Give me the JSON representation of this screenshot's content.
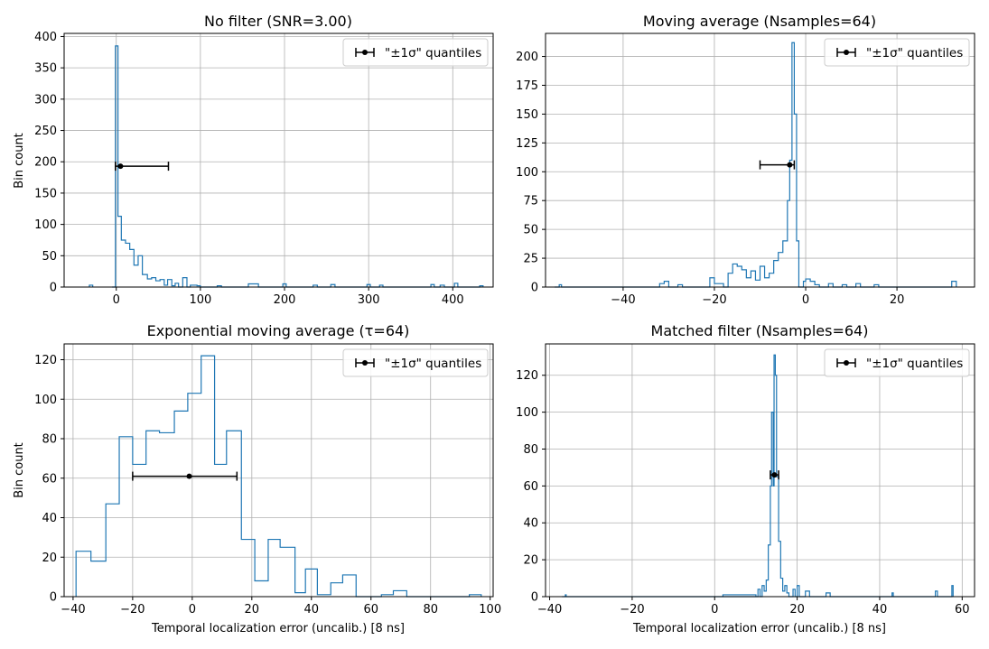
{
  "figure": {
    "ylabel": "Bin count",
    "xlabel": "Temporal localization error (uncalib.) [8 ns]"
  },
  "chart_data": [
    {
      "type": "histogram",
      "title": "No filter (SNR=3.00)",
      "legend": {
        "label": "\"±1σ\" quantiles",
        "placement": "top-right"
      },
      "grid": true,
      "xlim": [
        -62,
        448
      ],
      "ylim": [
        0,
        405
      ],
      "xticks": [
        0,
        100,
        200,
        300,
        400
      ],
      "yticks": [
        0,
        50,
        100,
        150,
        200,
        250,
        300,
        350,
        400
      ],
      "steps": [
        [
          -5,
          0
        ],
        [
          -1,
          385
        ],
        [
          2,
          113
        ],
        [
          6,
          75
        ],
        [
          11,
          70
        ],
        [
          16,
          60
        ],
        [
          21,
          35
        ],
        [
          26,
          50
        ],
        [
          31,
          20
        ],
        [
          37,
          13
        ],
        [
          42,
          15
        ],
        [
          47,
          10
        ],
        [
          52,
          12
        ],
        [
          57,
          3
        ],
        [
          61,
          12
        ],
        [
          66,
          2
        ],
        [
          70,
          6
        ],
        [
          74,
          0
        ],
        [
          79,
          15
        ],
        [
          84,
          0
        ],
        [
          88,
          3
        ],
        [
          96,
          2
        ],
        [
          100,
          0
        ],
        [
          120,
          2
        ],
        [
          125,
          0
        ],
        [
          157,
          5
        ],
        [
          169,
          0
        ],
        [
          198,
          5
        ],
        [
          202,
          0
        ],
        [
          234,
          3
        ],
        [
          239,
          0
        ],
        [
          255,
          4
        ],
        [
          260,
          0
        ],
        [
          298,
          4
        ],
        [
          302,
          0
        ],
        [
          313,
          3
        ],
        [
          317,
          0
        ],
        [
          374,
          4
        ],
        [
          378,
          0
        ],
        [
          385,
          3
        ],
        [
          390,
          0
        ],
        [
          402,
          6
        ],
        [
          406,
          0
        ],
        [
          432,
          2
        ],
        [
          436,
          0
        ]
      ],
      "steps_end": 436,
      "bars_extra": [
        [
          -32,
          -28,
          3
        ]
      ],
      "errorbar": {
        "x": 5,
        "xmin": -1,
        "xmax": 62,
        "y": 193
      }
    },
    {
      "type": "histogram",
      "title": "Moving average (Nsamples=64)",
      "legend": {
        "label": "\"±1σ\" quantiles",
        "placement": "top-right"
      },
      "grid": true,
      "xlim": [
        -57,
        37
      ],
      "ylim": [
        0,
        220
      ],
      "xticks": [
        -40,
        -20,
        0,
        20
      ],
      "yticks": [
        0,
        25,
        50,
        75,
        100,
        125,
        150,
        175,
        200
      ],
      "steps": [
        [
          -55,
          0
        ],
        [
          -54,
          2
        ],
        [
          -53.5,
          0
        ],
        [
          -32,
          3
        ],
        [
          -31,
          5
        ],
        [
          -30,
          0
        ],
        [
          -28,
          2
        ],
        [
          -27,
          0
        ],
        [
          -21,
          8
        ],
        [
          -20,
          3
        ],
        [
          -18,
          0
        ],
        [
          -17,
          12
        ],
        [
          -16,
          20
        ],
        [
          -15,
          18
        ],
        [
          -14,
          15
        ],
        [
          -13,
          8
        ],
        [
          -12,
          14
        ],
        [
          -11,
          6
        ],
        [
          -10,
          18
        ],
        [
          -9,
          8
        ],
        [
          -8,
          12
        ],
        [
          -7,
          23
        ],
        [
          -6,
          30
        ],
        [
          -5,
          40
        ],
        [
          -4,
          75
        ],
        [
          -3.5,
          110
        ],
        [
          -3,
          212
        ],
        [
          -2.5,
          150
        ],
        [
          -2,
          40
        ],
        [
          -1.5,
          0
        ],
        [
          -0.5,
          5
        ],
        [
          0,
          7
        ],
        [
          1,
          5
        ],
        [
          2,
          2
        ],
        [
          3,
          0
        ],
        [
          5,
          3
        ],
        [
          6,
          0
        ],
        [
          8,
          2
        ],
        [
          9,
          0
        ],
        [
          11,
          3
        ],
        [
          12,
          0
        ],
        [
          15,
          2
        ],
        [
          16,
          0
        ],
        [
          32,
          5
        ],
        [
          33,
          0
        ]
      ],
      "steps_end": 33,
      "bars_extra": [],
      "errorbar": {
        "x": -3.5,
        "xmin": -10,
        "xmax": -2.5,
        "y": 106
      }
    },
    {
      "type": "histogram",
      "title": "Exponential moving average (τ=64)",
      "legend": {
        "label": "\"±1σ\" quantiles",
        "placement": "top-right"
      },
      "grid": true,
      "xlim": [
        -43,
        101
      ],
      "ylim": [
        0,
        128
      ],
      "xticks": [
        -40,
        -20,
        0,
        20,
        40,
        60,
        80,
        100
      ],
      "yticks": [
        0,
        20,
        40,
        60,
        80,
        100,
        120
      ],
      "steps": [
        [
          -39,
          23
        ],
        [
          -34,
          18
        ],
        [
          -29,
          47
        ],
        [
          -24.5,
          81
        ],
        [
          -20,
          67
        ],
        [
          -15.5,
          84
        ],
        [
          -11,
          83
        ],
        [
          -6,
          94
        ],
        [
          -1.5,
          103
        ],
        [
          3,
          122
        ],
        [
          7.5,
          67
        ],
        [
          11.5,
          84
        ],
        [
          16.5,
          29
        ],
        [
          21,
          8
        ],
        [
          25.5,
          29
        ],
        [
          29.5,
          25
        ],
        [
          34.5,
          2
        ],
        [
          38,
          14
        ],
        [
          42,
          1
        ],
        [
          46.5,
          7
        ],
        [
          50.5,
          11
        ],
        [
          55,
          0
        ],
        [
          63.5,
          1
        ],
        [
          67.5,
          3
        ],
        [
          72,
          0
        ],
        [
          93,
          1
        ],
        [
          97,
          0
        ]
      ],
      "steps_end": 97,
      "bars_extra": [],
      "errorbar": {
        "x": -1,
        "xmin": -20,
        "xmax": 15,
        "y": 61
      }
    },
    {
      "type": "histogram",
      "title": "Matched filter (Nsamples=64)",
      "legend": {
        "label": "\"±1σ\" quantiles",
        "placement": "top-right"
      },
      "grid": true,
      "xlim": [
        -41,
        63
      ],
      "ylim": [
        0,
        137
      ],
      "xticks": [
        -40,
        -20,
        0,
        20,
        40,
        60
      ],
      "yticks": [
        0,
        20,
        40,
        60,
        80,
        100,
        120
      ],
      "steps": [
        [
          -37,
          0
        ],
        [
          -36.2,
          1
        ],
        [
          -36,
          0
        ],
        [
          10.5,
          4
        ],
        [
          11,
          0
        ],
        [
          11.5,
          6
        ],
        [
          12,
          3
        ],
        [
          12.5,
          9
        ],
        [
          13,
          28
        ],
        [
          13.5,
          60
        ],
        [
          13.8,
          100
        ],
        [
          14.2,
          60
        ],
        [
          14.4,
          131
        ],
        [
          14.7,
          120
        ],
        [
          15,
          65
        ],
        [
          15.5,
          30
        ],
        [
          16,
          10
        ],
        [
          16.5,
          3
        ],
        [
          17,
          6
        ],
        [
          17.5,
          2
        ],
        [
          18,
          0
        ],
        [
          19,
          4
        ],
        [
          19.5,
          0
        ],
        [
          20,
          6
        ],
        [
          20.5,
          0
        ],
        [
          22,
          3
        ],
        [
          23,
          0
        ],
        [
          27,
          2
        ],
        [
          28,
          0
        ],
        [
          43,
          2
        ],
        [
          43.3,
          0
        ],
        [
          53.5,
          3
        ],
        [
          54,
          0
        ],
        [
          57.5,
          6
        ],
        [
          57.8,
          0
        ]
      ],
      "steps_end": 57.8,
      "bars_extra": [
        [
          2,
          10,
          1
        ]
      ],
      "errorbar": {
        "x": 14.5,
        "xmin": 13.5,
        "xmax": 15.5,
        "y": 66
      }
    }
  ]
}
